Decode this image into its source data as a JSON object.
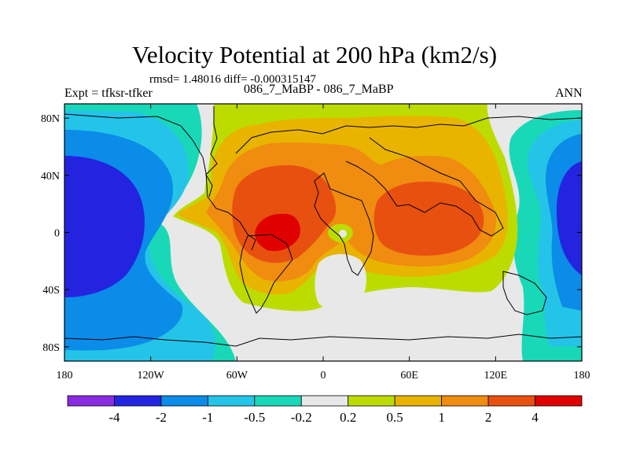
{
  "title": "Velocity Potential at 200 hPa (km2/s)",
  "subtitle": "rmsd= 1.48016 diff= -0.000315147",
  "left_string": "Expt = tfksr-tfker",
  "center_string": "086_7_MaBP - 086_7_MaBP",
  "right_string": "ANN",
  "colors": {
    "c1": "#8a2be2",
    "c2": "#2424e0",
    "c3": "#0a8ce8",
    "c4": "#24c4e8",
    "c5": "#18d8b8",
    "c6": "#e8e8e8",
    "c7": "#bcdc00",
    "c8": "#e8b400",
    "c9": "#f08c10",
    "c10": "#e85010",
    "c11": "#e00000"
  },
  "chart_data": {
    "type": "contour-map",
    "projection": "cylindrical-equidistant",
    "variable": "velocity potential difference at 200 hPa",
    "units": "km2/s",
    "x_axis": {
      "range": [
        -180,
        180
      ],
      "ticks": [
        -180,
        -120,
        -60,
        0,
        60,
        120,
        180
      ],
      "tick_labels": [
        "180",
        "120W",
        "60W",
        "0",
        "60E",
        "120E",
        "180"
      ]
    },
    "y_axis": {
      "range": [
        -90,
        90
      ],
      "ticks": [
        80,
        40,
        0,
        -40,
        -80
      ],
      "tick_labels": [
        "80N",
        "40N",
        "0",
        "40S",
        "80S"
      ]
    },
    "contour_levels": [
      -4,
      -2,
      -1,
      -0.5,
      -0.2,
      0.2,
      0.5,
      1,
      2,
      4
    ],
    "colorbar_labels": [
      "-4",
      "-2",
      "-1",
      "-0.5",
      "-0.2",
      "0.2",
      "0.5",
      "1",
      "2",
      "4"
    ],
    "features": [
      {
        "name": "negative center over central Pacific",
        "lon": -170,
        "lat": 5,
        "min_level": -4
      },
      {
        "name": "negative center over western Pacific",
        "lon": 175,
        "lat": 5,
        "min_level": -4
      },
      {
        "name": "positive center over Atlantic / West Africa",
        "lon": -30,
        "lat": 0,
        "max_level": 4
      },
      {
        "name": "positive center over Indian Ocean",
        "lon": 75,
        "lat": 5,
        "max_level": 4
      }
    ]
  }
}
